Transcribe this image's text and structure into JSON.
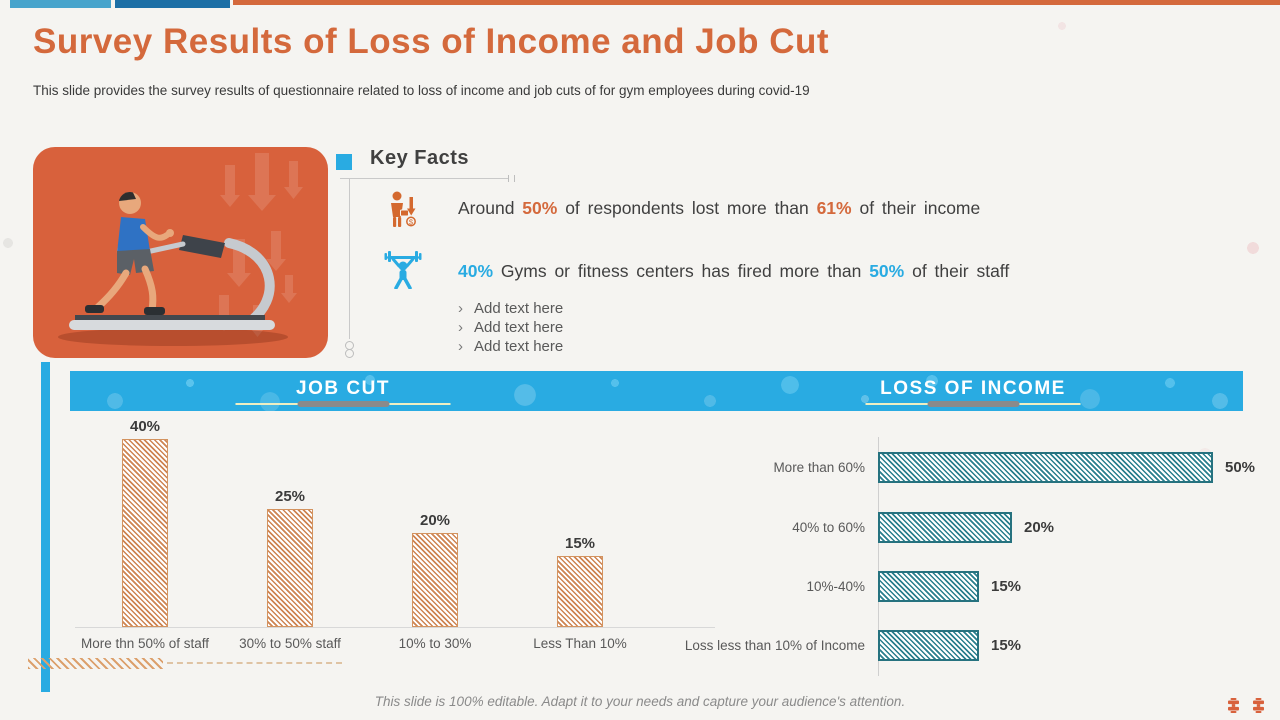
{
  "slide": {
    "title": "Survey Results of Loss of Income and Job Cut",
    "subtitle": "This slide provides the survey results of questionnaire related to loss of income and job cuts of for gym employees during covid-19",
    "footer": "This slide is 100% editable. Adapt it to your needs and capture your audience's attention."
  },
  "colors": {
    "accent_orange": "#D4693C",
    "accent_cyan": "#29ABE2",
    "accent_dark_blue": "#1C6FA6",
    "accent_muted_blue": "#47A4CC",
    "bar_orange_hatch": "#CE8452",
    "bar_teal_hatch": "#2A7F8D",
    "text_dark": "#3F3F3F",
    "text_gray": "#595959"
  },
  "key_facts": {
    "heading": "Key Facts",
    "facts": [
      {
        "icon": "businessman-income-down-icon",
        "segments": [
          {
            "text": "Around ",
            "color": "dark"
          },
          {
            "text": "50%",
            "color": "orange"
          },
          {
            "text": " of respondents lost more than ",
            "color": "dark"
          },
          {
            "text": "61%",
            "color": "orange"
          },
          {
            "text": " of their income",
            "color": "dark"
          }
        ]
      },
      {
        "icon": "weightlifter-icon",
        "segments": [
          {
            "text": "40%",
            "color": "cyan"
          },
          {
            "text": " Gyms or fitness centers has fired more than ",
            "color": "dark"
          },
          {
            "text": "50%",
            "color": "cyan"
          },
          {
            "text": " of their staff",
            "color": "dark"
          }
        ]
      }
    ],
    "bullet_marker": "›",
    "bullets": [
      "Add text here",
      "Add text here",
      "Add text here"
    ]
  },
  "chart_data": [
    {
      "type": "bar",
      "orientation": "vertical",
      "title": "JOB CUT",
      "categories": [
        "More thn 50% of staff",
        "30% to 50% staff",
        "10% to 30%",
        "Less Than 10%"
      ],
      "values": [
        40,
        25,
        20,
        15
      ],
      "value_labels": [
        "40%",
        "25%",
        "20%",
        "15%"
      ],
      "unit": "%",
      "ylim": [
        0,
        45
      ],
      "grid": false,
      "bar_style": "orange diagonal hatch"
    },
    {
      "type": "bar",
      "orientation": "horizontal",
      "title": "LOSS OF INCOME",
      "categories": [
        "More than 60%",
        "40% to 60%",
        "10%-40%",
        "Loss less than 10% of Income"
      ],
      "values": [
        50,
        20,
        15,
        15
      ],
      "value_labels": [
        "50%",
        "20%",
        "15%",
        "15%"
      ],
      "unit": "%",
      "xlim": [
        0,
        55
      ],
      "grid": false,
      "bar_style": "teal diagonal hatch"
    }
  ]
}
